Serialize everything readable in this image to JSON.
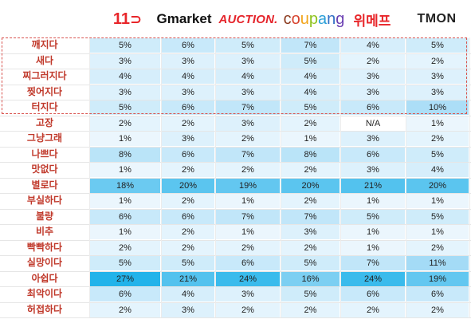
{
  "chart_data": {
    "type": "heatmap",
    "columns": [
      {
        "name": "11st",
        "logo_text": "11",
        "color": "#e8262a"
      },
      {
        "name": "Gmarket",
        "logo_text": "Gmarket",
        "color": "#1db23f"
      },
      {
        "name": "AUCTION.",
        "logo_text": "AUCTION.",
        "color": "#e5242b"
      },
      {
        "name": "coupang",
        "logo_text": "coupang",
        "color": "#2f6ec4"
      },
      {
        "name": "위메프",
        "logo_text": "위메프",
        "color": "#e8262a"
      },
      {
        "name": "TMON",
        "logo_text": "TMON",
        "color": "#222222"
      }
    ],
    "rows": [
      {
        "label": "깨지다",
        "values": [
          "5%",
          "6%",
          "5%",
          "7%",
          "4%",
          "5%"
        ]
      },
      {
        "label": "새다",
        "values": [
          "3%",
          "3%",
          "3%",
          "5%",
          "2%",
          "2%"
        ]
      },
      {
        "label": "찌그러지다",
        "values": [
          "4%",
          "4%",
          "4%",
          "4%",
          "3%",
          "3%"
        ]
      },
      {
        "label": "찢어지다",
        "values": [
          "3%",
          "3%",
          "3%",
          "4%",
          "3%",
          "3%"
        ]
      },
      {
        "label": "터지다",
        "values": [
          "5%",
          "6%",
          "7%",
          "5%",
          "6%",
          "10%"
        ]
      },
      {
        "label": "고장",
        "values": [
          "2%",
          "2%",
          "3%",
          "2%",
          "N/A",
          "1%"
        ]
      },
      {
        "label": "그냥그래",
        "values": [
          "1%",
          "3%",
          "2%",
          "1%",
          "3%",
          "2%"
        ]
      },
      {
        "label": "나쁘다",
        "values": [
          "8%",
          "6%",
          "7%",
          "8%",
          "6%",
          "5%"
        ]
      },
      {
        "label": "맛없다",
        "values": [
          "1%",
          "2%",
          "2%",
          "2%",
          "3%",
          "4%"
        ]
      },
      {
        "label": "별로다",
        "values": [
          "18%",
          "20%",
          "19%",
          "20%",
          "21%",
          "20%"
        ]
      },
      {
        "label": "부실하다",
        "values": [
          "1%",
          "2%",
          "1%",
          "2%",
          "1%",
          "1%"
        ]
      },
      {
        "label": "불량",
        "values": [
          "6%",
          "6%",
          "7%",
          "7%",
          "5%",
          "5%"
        ]
      },
      {
        "label": "비추",
        "values": [
          "1%",
          "2%",
          "1%",
          "3%",
          "1%",
          "1%"
        ]
      },
      {
        "label": "빡빡하다",
        "values": [
          "2%",
          "2%",
          "2%",
          "2%",
          "1%",
          "2%"
        ]
      },
      {
        "label": "실망이다",
        "values": [
          "5%",
          "5%",
          "6%",
          "5%",
          "7%",
          "11%"
        ]
      },
      {
        "label": "아쉽다",
        "values": [
          "27%",
          "21%",
          "24%",
          "16%",
          "24%",
          "19%"
        ]
      },
      {
        "label": "최악이다",
        "values": [
          "6%",
          "4%",
          "3%",
          "5%",
          "6%",
          "6%"
        ]
      },
      {
        "label": "허접하다",
        "values": [
          "2%",
          "3%",
          "2%",
          "2%",
          "2%",
          "2%"
        ]
      }
    ],
    "highlight_rows": [
      0,
      4
    ],
    "color_scale": {
      "min": 0,
      "max": 27,
      "low": "#f2f9fe",
      "mid": "#a6dcf6",
      "high": "#22b3ea"
    }
  }
}
